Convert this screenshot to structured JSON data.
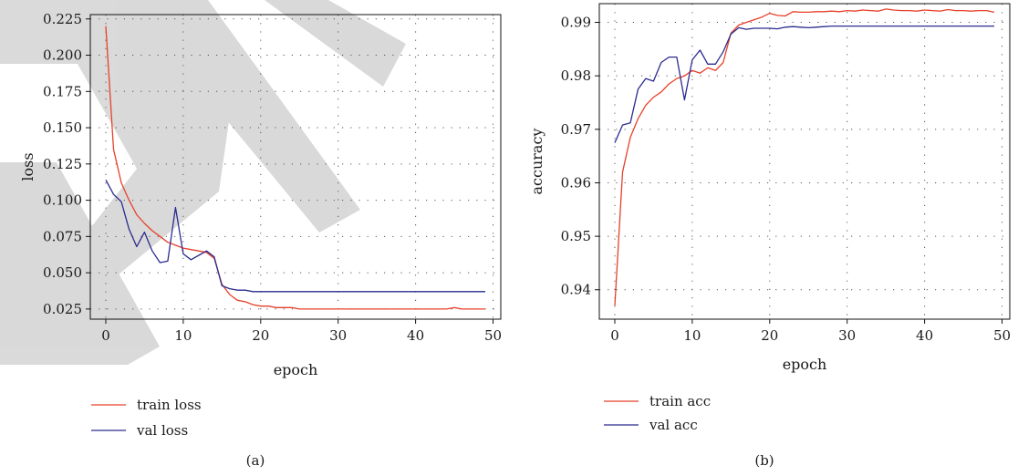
{
  "captions": [
    "(a)",
    "(b)"
  ],
  "colors": {
    "train": "#e8402a",
    "val": "#2b2b8f",
    "watermark": "#d3d3d3",
    "grid": "#555555"
  },
  "chart_data": [
    {
      "type": "line",
      "xlabel": "epoch",
      "ylabel": "loss",
      "xlim": [
        -2,
        51
      ],
      "ylim": [
        0.018,
        0.228
      ],
      "xticks": [
        0,
        10,
        20,
        30,
        40,
        50
      ],
      "xtick_labels": [
        "0",
        "10",
        "20",
        "30",
        "40",
        "50"
      ],
      "yticks": [
        0.025,
        0.05,
        0.075,
        0.1,
        0.125,
        0.15,
        0.175,
        0.2,
        0.225
      ],
      "ytick_labels": [
        "0.025",
        "0.050",
        "0.075",
        "0.100",
        "0.125",
        "0.150",
        "0.175",
        "0.200",
        "0.225"
      ],
      "grid": true,
      "legend_position": "below",
      "x": [
        0,
        1,
        2,
        3,
        4,
        5,
        6,
        7,
        8,
        9,
        10,
        11,
        12,
        13,
        14,
        15,
        16,
        17,
        18,
        19,
        20,
        21,
        22,
        23,
        24,
        25,
        26,
        27,
        28,
        29,
        30,
        31,
        32,
        33,
        34,
        35,
        36,
        37,
        38,
        39,
        40,
        41,
        42,
        43,
        44,
        45,
        46,
        47,
        48,
        49
      ],
      "series": [
        {
          "name": "train loss",
          "color": "#e8402a",
          "values": [
            0.22,
            0.135,
            0.112,
            0.1,
            0.09,
            0.084,
            0.079,
            0.075,
            0.071,
            0.069,
            0.067,
            0.066,
            0.065,
            0.064,
            0.06,
            0.042,
            0.035,
            0.031,
            0.03,
            0.028,
            0.027,
            0.027,
            0.026,
            0.026,
            0.026,
            0.025,
            0.025,
            0.025,
            0.025,
            0.025,
            0.025,
            0.025,
            0.025,
            0.025,
            0.025,
            0.025,
            0.025,
            0.025,
            0.025,
            0.025,
            0.025,
            0.025,
            0.025,
            0.025,
            0.025,
            0.026,
            0.025,
            0.025,
            0.025,
            0.025
          ]
        },
        {
          "name": "val loss",
          "color": "#2b2b8f",
          "values": [
            0.114,
            0.104,
            0.099,
            0.08,
            0.068,
            0.078,
            0.065,
            0.057,
            0.058,
            0.095,
            0.063,
            0.059,
            0.062,
            0.065,
            0.061,
            0.041,
            0.039,
            0.038,
            0.038,
            0.037,
            0.037,
            0.037,
            0.037,
            0.037,
            0.037,
            0.037,
            0.037,
            0.037,
            0.037,
            0.037,
            0.037,
            0.037,
            0.037,
            0.037,
            0.037,
            0.037,
            0.037,
            0.037,
            0.037,
            0.037,
            0.037,
            0.037,
            0.037,
            0.037,
            0.037,
            0.037,
            0.037,
            0.037,
            0.037,
            0.037
          ]
        }
      ]
    },
    {
      "type": "line",
      "xlabel": "epoch",
      "ylabel": "accuracy",
      "xlim": [
        -2,
        51
      ],
      "ylim": [
        0.9345,
        0.9935
      ],
      "xticks": [
        0,
        10,
        20,
        30,
        40,
        50
      ],
      "xtick_labels": [
        "0",
        "10",
        "20",
        "30",
        "40",
        "50"
      ],
      "yticks": [
        0.94,
        0.95,
        0.96,
        0.97,
        0.98,
        0.99
      ],
      "ytick_labels": [
        "0.94",
        "0.95",
        "0.96",
        "0.97",
        "0.98",
        "0.99"
      ],
      "grid": true,
      "legend_position": "below",
      "x": [
        0,
        1,
        2,
        3,
        4,
        5,
        6,
        7,
        8,
        9,
        10,
        11,
        12,
        13,
        14,
        15,
        16,
        17,
        18,
        19,
        20,
        21,
        22,
        23,
        24,
        25,
        26,
        27,
        28,
        29,
        30,
        31,
        32,
        33,
        34,
        35,
        36,
        37,
        38,
        39,
        40,
        41,
        42,
        43,
        44,
        45,
        46,
        47,
        48,
        49
      ],
      "series": [
        {
          "name": "train acc",
          "color": "#e8402a",
          "values": [
            0.937,
            0.962,
            0.9685,
            0.972,
            0.9745,
            0.976,
            0.977,
            0.9785,
            0.9795,
            0.98,
            0.981,
            0.9805,
            0.9815,
            0.981,
            0.9825,
            0.988,
            0.9895,
            0.99,
            0.9905,
            0.991,
            0.9917,
            0.9913,
            0.9912,
            0.992,
            0.9919,
            0.9919,
            0.992,
            0.992,
            0.9921,
            0.992,
            0.9922,
            0.9921,
            0.9923,
            0.9922,
            0.9921,
            0.9925,
            0.9923,
            0.9922,
            0.9922,
            0.9921,
            0.9923,
            0.9922,
            0.9921,
            0.9924,
            0.9922,
            0.9922,
            0.9921,
            0.9922,
            0.9922,
            0.9919
          ]
        },
        {
          "name": "val acc",
          "color": "#2b2b8f",
          "values": [
            0.9675,
            0.9708,
            0.9712,
            0.9775,
            0.9795,
            0.979,
            0.9825,
            0.9835,
            0.9835,
            0.9755,
            0.983,
            0.9848,
            0.9822,
            0.9822,
            0.9845,
            0.9878,
            0.989,
            0.9887,
            0.9889,
            0.9889,
            0.9889,
            0.9888,
            0.9891,
            0.9892,
            0.9891,
            0.989,
            0.9891,
            0.9892,
            0.9893,
            0.9893,
            0.9893,
            0.9893,
            0.9893,
            0.9893,
            0.9893,
            0.9893,
            0.9893,
            0.9893,
            0.9893,
            0.9893,
            0.9893,
            0.9893,
            0.9893,
            0.9893,
            0.9893,
            0.9893,
            0.9893,
            0.9893,
            0.9893,
            0.9893
          ]
        }
      ]
    }
  ]
}
